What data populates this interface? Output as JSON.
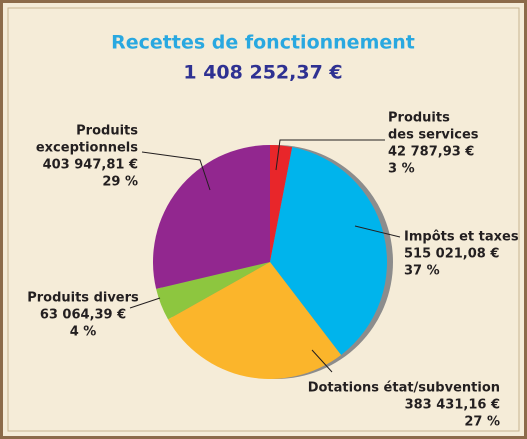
{
  "chart_data": {
    "type": "pie",
    "title": "Recettes de fonctionnement",
    "subtitle": "1 408 252,37 €",
    "categories": [
      [
        "Produits",
        "des services"
      ],
      [
        "Impôts et taxes"
      ],
      [
        "Dotations état/subvention"
      ],
      [
        "Produits divers"
      ],
      [
        "Produits",
        "exceptionnels"
      ]
    ],
    "values": [
      42787.93,
      515021.08,
      383431.16,
      63064.39,
      403947.81
    ],
    "value_labels": [
      "42 787,93 €",
      "515 021,08 €",
      "383 431,16 €",
      "63 064,39 €",
      "403 947,81 €"
    ],
    "percents": [
      3,
      37,
      27,
      4,
      29
    ],
    "percent_labels": [
      "3 %",
      "37 %",
      "27 %",
      "4 %",
      "29 %"
    ],
    "colors": [
      "#e8262a",
      "#00b4ec",
      "#fbb52b",
      "#8dc63f",
      "#92278f"
    ]
  }
}
